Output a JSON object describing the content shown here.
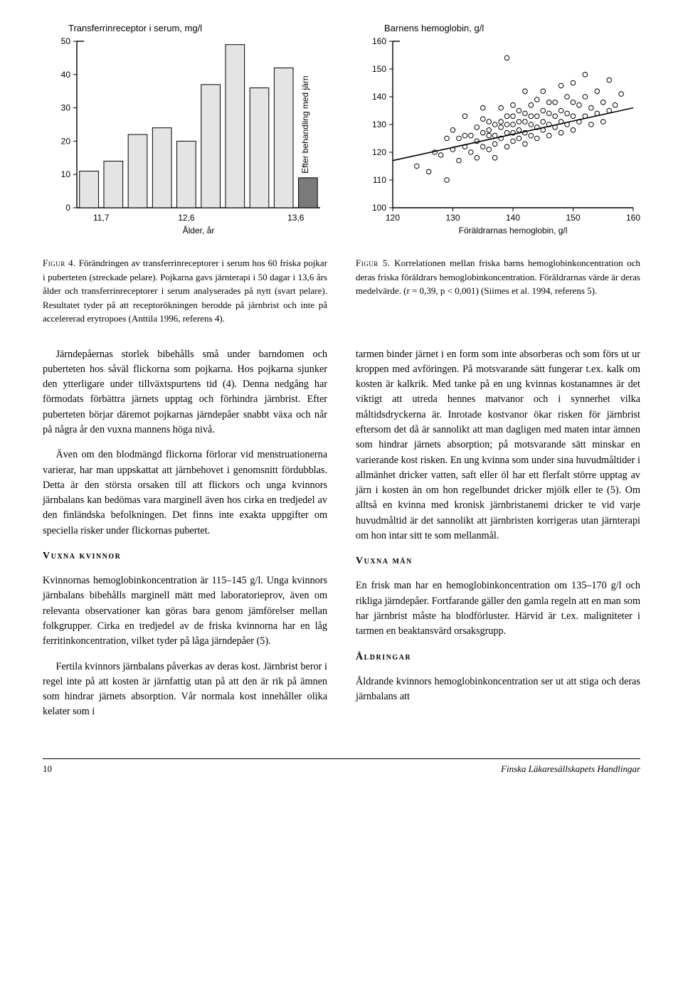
{
  "fig4": {
    "type": "bar",
    "title": "Transferrinreceptor i serum, mg/l",
    "xlabel": "Ålder, år",
    "x_ticks": [
      "11,7",
      "12,6",
      "13,6"
    ],
    "y_ticks": [
      0,
      10,
      20,
      30,
      40,
      50
    ],
    "ylim": [
      0,
      50
    ],
    "rotated_label": "Efter behandling med järn",
    "bars": [
      {
        "value": 11,
        "color": "#e4e4e4",
        "stroke": "#000"
      },
      {
        "value": 14,
        "color": "#e4e4e4",
        "stroke": "#000"
      },
      {
        "value": 22,
        "color": "#e4e4e4",
        "stroke": "#000"
      },
      {
        "value": 24,
        "color": "#e4e4e4",
        "stroke": "#000"
      },
      {
        "value": 20,
        "color": "#e4e4e4",
        "stroke": "#000"
      },
      {
        "value": 37,
        "color": "#e4e4e4",
        "stroke": "#000"
      },
      {
        "value": 49,
        "color": "#e4e4e4",
        "stroke": "#000"
      },
      {
        "value": 36,
        "color": "#e4e4e4",
        "stroke": "#000"
      },
      {
        "value": 42,
        "color": "#e4e4e4",
        "stroke": "#000"
      },
      {
        "value": 9,
        "color": "#7a7a7a",
        "stroke": "#000"
      }
    ],
    "bar_width": 0.78,
    "background_color": "#ffffff",
    "axis_color": "#000000",
    "label_fontsize": 12,
    "title_fontsize": 13
  },
  "fig5": {
    "type": "scatter",
    "title": "Barnens hemoglobin, g/l",
    "xlabel": "Föräldrarnas hemoglobin, g/l",
    "x_ticks": [
      120,
      130,
      140,
      150,
      160
    ],
    "y_ticks": [
      100,
      110,
      120,
      130,
      140,
      150,
      160
    ],
    "xlim": [
      120,
      160
    ],
    "ylim": [
      100,
      160
    ],
    "marker_radius": 3.3,
    "marker_fill": "none",
    "marker_stroke": "#000000",
    "trend_line": {
      "x1": 120,
      "y1": 117,
      "x2": 160,
      "y2": 136,
      "stroke": "#000",
      "width": 1.6
    },
    "points": [
      [
        124,
        115
      ],
      [
        126,
        113
      ],
      [
        127,
        120
      ],
      [
        128,
        119
      ],
      [
        129,
        110
      ],
      [
        129,
        125
      ],
      [
        130,
        121
      ],
      [
        130,
        128
      ],
      [
        131,
        117
      ],
      [
        131,
        125
      ],
      [
        132,
        122
      ],
      [
        132,
        126
      ],
      [
        132,
        133
      ],
      [
        133,
        120
      ],
      [
        133,
        126
      ],
      [
        134,
        124
      ],
      [
        134,
        129
      ],
      [
        134,
        118
      ],
      [
        135,
        122
      ],
      [
        135,
        127
      ],
      [
        135,
        132
      ],
      [
        135,
        136
      ],
      [
        136,
        121
      ],
      [
        136,
        126
      ],
      [
        136,
        128
      ],
      [
        136,
        131
      ],
      [
        137,
        123
      ],
      [
        137,
        126
      ],
      [
        137,
        130
      ],
      [
        137,
        118
      ],
      [
        138,
        125
      ],
      [
        138,
        129
      ],
      [
        138,
        131
      ],
      [
        138,
        136
      ],
      [
        139,
        122
      ],
      [
        139,
        127
      ],
      [
        139,
        130
      ],
      [
        139,
        133
      ],
      [
        139,
        154
      ],
      [
        140,
        124
      ],
      [
        140,
        127
      ],
      [
        140,
        130
      ],
      [
        140,
        133
      ],
      [
        140,
        137
      ],
      [
        141,
        125
      ],
      [
        141,
        128
      ],
      [
        141,
        131
      ],
      [
        141,
        135
      ],
      [
        142,
        123
      ],
      [
        142,
        127
      ],
      [
        142,
        131
      ],
      [
        142,
        134
      ],
      [
        142,
        142
      ],
      [
        143,
        126
      ],
      [
        143,
        130
      ],
      [
        143,
        133
      ],
      [
        143,
        137
      ],
      [
        144,
        125
      ],
      [
        144,
        129
      ],
      [
        144,
        133
      ],
      [
        144,
        139
      ],
      [
        145,
        128
      ],
      [
        145,
        131
      ],
      [
        145,
        135
      ],
      [
        145,
        142
      ],
      [
        146,
        126
      ],
      [
        146,
        130
      ],
      [
        146,
        134
      ],
      [
        146,
        138
      ],
      [
        147,
        129
      ],
      [
        147,
        133
      ],
      [
        147,
        138
      ],
      [
        148,
        127
      ],
      [
        148,
        131
      ],
      [
        148,
        135
      ],
      [
        148,
        144
      ],
      [
        149,
        130
      ],
      [
        149,
        134
      ],
      [
        149,
        140
      ],
      [
        150,
        128
      ],
      [
        150,
        133
      ],
      [
        150,
        138
      ],
      [
        150,
        145
      ],
      [
        151,
        131
      ],
      [
        151,
        137
      ],
      [
        152,
        133
      ],
      [
        152,
        140
      ],
      [
        152,
        148
      ],
      [
        153,
        130
      ],
      [
        153,
        136
      ],
      [
        154,
        134
      ],
      [
        154,
        142
      ],
      [
        155,
        131
      ],
      [
        155,
        138
      ],
      [
        156,
        135
      ],
      [
        156,
        146
      ],
      [
        157,
        137
      ],
      [
        158,
        141
      ]
    ],
    "background_color": "#ffffff",
    "axis_color": "#000000",
    "label_fontsize": 12,
    "title_fontsize": 13
  },
  "captions": {
    "fig4": {
      "label": "Figur 4.",
      "text": "Förändringen av transferrinreceptorer i serum hos 60 friska pojkar i puberteten (streckade pelare). Pojkarna gavs järnterapi i 50 dagar i 13,6 års ålder och transferrinreceptorer i serum analyserades på nytt (svart pelare). Resultatet tyder på att receptorökningen berodde på järnbrist och inte på accelererad erytropoes (Anttila 1996, referens 4)."
    },
    "fig5": {
      "label": "Figur 5.",
      "text": "Korrelationen mellan friska barns hemoglobinkoncentration och deras friska föräldrars hemoglobinkoncentration. Föräldrarnas värde är deras medelvärde. (r = 0,39, p < 0,001) (Siimes et al. 1994, referens 5)."
    }
  },
  "body": {
    "left": {
      "p1": "Järndepåernas storlek bibehålls små under barndomen och puberteten hos såväl flickorna som pojkarna. Hos pojkarna sjunker den ytterligare under tillväxtspurtens tid (4). Denna nedgång har förmodats förbättra järnets upptag och förhindra järnbrist. Efter puberteten börjar däremot pojkarnas järndepåer snabbt växa och når på några år den vuxna mannens höga nivå.",
      "p2": "Även om den blodmängd flickorna förlorar vid menstruationerna varierar, har man uppskattat att järnbehovet i genomsnitt fördubblas. Detta är den största orsaken till att flickors och unga kvinnors järnbalans kan bedömas vara marginell även hos cirka en tredjedel av den finländska befolkningen. Det finns inte exakta uppgifter om speciella risker under flickornas pubertet.",
      "h_vuxna_kvinnor": "Vuxna kvinnor",
      "p3": "Kvinnornas hemoglobinkoncentration är 115–145 g/l. Unga kvinnors järnbalans bibehålls marginell mätt med laboratorieprov, även om relevanta observationer kan göras bara genom jämförelser mellan folkgrupper. Cirka en tredjedel av de friska kvinnorna har en låg ferritinkoncentration, vilket tyder på låga järndepåer (5).",
      "p4": "Fertila kvinnors järnbalans påverkas av deras kost. Järnbrist beror i regel inte på att kosten är järnfattig utan på att den är rik på ämnen som hindrar järnets absorption. Vår normala kost innehåller olika kelater som i"
    },
    "right": {
      "p1": "tarmen binder järnet i en form som inte absorberas och som förs ut ur kroppen med avföringen. På motsvarande sätt fungerar t.ex. kalk om kosten är kalkrik. Med tanke på en ung kvinnas kostanamnes är det viktigt att utreda hennes matvanor och i synnerhet vilka måltidsdryckerna är. Inrotade kostvanor ökar risken för järnbrist eftersom det då är sannolikt att man dagligen med maten intar ämnen som hindrar järnets absorption; på motsvarande sätt minskar en varierande kost risken. En ung kvinna som under sina huvudmåltider i allmänhet dricker vatten, saft eller öl har ett flerfalt större upptag av järn i kosten än om hon regelbundet dricker mjölk eller te (5). Om alltså en kvinna med kronisk järnbristanemi dricker te vid varje huvudmåltid är det sannolikt att järnbristen korrigeras utan järnterapi om hon intar sitt te som mellanmål.",
      "h_vuxna_man": "Vuxna män",
      "p2": "En frisk man har en hemoglobinkoncentration om 135–170 g/l och rikliga järndepåer. Fortfarande gäller den gamla regeln att en man som har järnbrist måste ha blodförluster. Härvid är t.ex. maligniteter i tarmen en beaktansvärd orsaksgrupp.",
      "h_aldringar": "Åldringar",
      "p3": "Åldrande kvinnors hemoglobinkoncentration ser ut att stiga och deras järnbalans att"
    }
  },
  "footer": {
    "page": "10",
    "journal": "Finska Läkaresällskapets Handlingar"
  }
}
